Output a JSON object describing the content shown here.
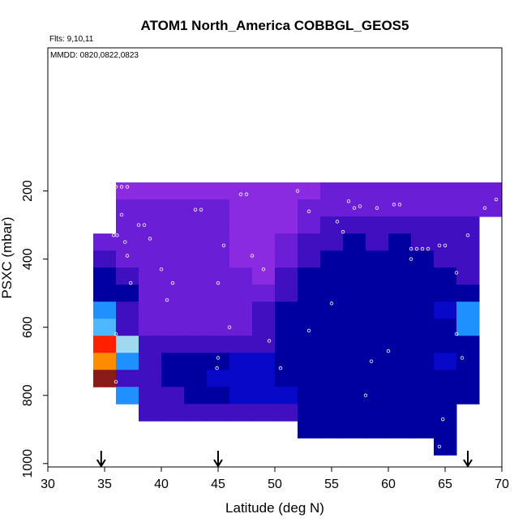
{
  "chart_data": {
    "type": "heatmap",
    "title": "ATOM1 North_America COBBGL_GEOS5",
    "annotations": [
      "Flts: 9,10,11",
      "MMDD: 0820,0822,0823"
    ],
    "xlabel": "Latitude (deg N)",
    "ylabel": "PSXC (mbar)",
    "xlim": [
      30,
      70
    ],
    "ylim": [
      1010,
      -220
    ],
    "xticks": [
      30,
      35,
      40,
      45,
      50,
      55,
      60,
      65,
      70
    ],
    "yticks": [
      200,
      400,
      600,
      800,
      1000
    ],
    "x_edges": [
      34,
      36,
      38,
      40,
      42,
      44,
      46,
      48,
      50,
      52,
      54,
      56,
      58,
      60,
      62,
      64,
      66,
      68,
      70
    ],
    "y_edges": [
      175,
      225,
      275,
      325,
      375,
      425,
      475,
      525,
      575,
      625,
      675,
      725,
      775,
      825,
      875,
      925,
      975
    ],
    "cells": [
      [
        null,
        "#8a2be2",
        "#8a2be2",
        "#8a2be2",
        "#8a2be2",
        "#8a2be2",
        "#8a2be2",
        "#8a2be2",
        "#8a2be2",
        "#8a2be2",
        "#6a1fd6",
        "#6a1fd6",
        "#6a1fd6",
        "#6a1fd6",
        "#6a1fd6",
        "#6a1fd6",
        "#6a1fd6",
        "#6a1fd6"
      ],
      [
        null,
        "#6a1fd6",
        "#6a1fd6",
        "#6a1fd6",
        "#6a1fd6",
        "#6a1fd6",
        "#8a2be2",
        "#8a2be2",
        "#8a2be2",
        "#6a1fd6",
        "#6a1fd6",
        "#6a1fd6",
        "#6a1fd6",
        "#6a1fd6",
        "#6a1fd6",
        "#6a1fd6",
        "#6a1fd6",
        "#6a1fd6"
      ],
      [
        null,
        "#6a1fd6",
        "#6a1fd6",
        "#6a1fd6",
        "#6a1fd6",
        "#6a1fd6",
        "#8a2be2",
        "#8a2be2",
        "#8a2be2",
        "#6a1fd6",
        "#4010c0",
        "#4010c0",
        "#4010c0",
        "#4010c0",
        "#4010c0",
        "#4010c0",
        "#4010c0",
        null
      ],
      [
        "#6a1fd6",
        "#6a1fd6",
        "#6a1fd6",
        "#6a1fd6",
        "#6a1fd6",
        "#6a1fd6",
        "#8a2be2",
        "#8a2be2",
        "#6a1fd6",
        "#4010c0",
        "#4010c0",
        "#0000a0",
        "#4010c0",
        "#0000a0",
        "#4010c0",
        "#4010c0",
        "#4010c0",
        null
      ],
      [
        "#4010c0",
        "#6a1fd6",
        "#6a1fd6",
        "#6a1fd6",
        "#6a1fd6",
        "#6a1fd6",
        "#8a2be2",
        "#8a2be2",
        "#6a1fd6",
        "#4010c0",
        "#0000a0",
        "#0000a0",
        "#0000a0",
        "#0000a0",
        "#0000a0",
        "#4010c0",
        "#4010c0",
        null
      ],
      [
        "#0000a0",
        "#4010c0",
        "#6a1fd6",
        "#6a1fd6",
        "#6a1fd6",
        "#6a1fd6",
        "#6a1fd6",
        "#8a2be2",
        "#4010c0",
        "#0000a0",
        "#0000a0",
        "#0000a0",
        "#0000a0",
        "#0000a0",
        "#0000a0",
        "#0000a0",
        "#4010c0",
        null
      ],
      [
        "#0000a0",
        "#0000a0",
        "#6a1fd6",
        "#6a1fd6",
        "#6a1fd6",
        "#6a1fd6",
        "#6a1fd6",
        "#6a1fd6",
        "#4010c0",
        "#0000a0",
        "#0000a0",
        "#0000a0",
        "#0000a0",
        "#0000a0",
        "#0000a0",
        "#0000a0",
        "#0000a0",
        null
      ],
      [
        "#1e90ff",
        "#4010c0",
        "#6a1fd6",
        "#6a1fd6",
        "#6a1fd6",
        "#6a1fd6",
        "#6a1fd6",
        "#4010c0",
        "#0000a0",
        "#0000a0",
        "#0000a0",
        "#0000a0",
        "#0000a0",
        "#0000a0",
        "#0000a0",
        "#0808c8",
        "#1e90ff",
        null
      ],
      [
        "#4db8ff",
        "#4010c0",
        "#6a1fd6",
        "#6a1fd6",
        "#6a1fd6",
        "#6a1fd6",
        "#6a1fd6",
        "#4010c0",
        "#0000a0",
        "#0000a0",
        "#0000a0",
        "#0000a0",
        "#0000a0",
        "#0000a0",
        "#0000a0",
        "#0000a0",
        "#1e90ff",
        null
      ],
      [
        "#ff2000",
        "#a0d8f0",
        "#4010c0",
        "#4010c0",
        "#4010c0",
        "#4010c0",
        "#4010c0",
        "#4010c0",
        "#0000a0",
        "#0000a0",
        "#0000a0",
        "#0000a0",
        "#0000a0",
        "#0000a0",
        "#0000a0",
        "#0000a0",
        "#0000a0",
        null
      ],
      [
        "#ff8c00",
        "#1e90ff",
        "#4010c0",
        "#0000a0",
        "#0000a0",
        "#0000a0",
        "#0808c8",
        "#0808c8",
        "#0000a0",
        "#0000a0",
        "#0000a0",
        "#0000a0",
        "#0000a0",
        "#0000a0",
        "#0000a0",
        "#0808c8",
        "#0000a0",
        null
      ],
      [
        "#8b1a1a",
        "#4010c0",
        "#4010c0",
        "#0000a0",
        "#0000a0",
        "#0808c8",
        "#0808c8",
        "#0808c8",
        "#0000a0",
        "#0000a0",
        "#0000a0",
        "#0000a0",
        "#0000a0",
        "#0000a0",
        "#0000a0",
        "#0000a0",
        "#0000a0",
        null
      ],
      [
        null,
        "#1e90ff",
        "#4010c0",
        "#4010c0",
        "#0000a0",
        "#0000a0",
        "#0808c8",
        "#0808c8",
        "#0808c8",
        "#0000a0",
        "#0000a0",
        "#0000a0",
        "#0000a0",
        "#0000a0",
        "#0000a0",
        "#0000a0",
        "#0000a0",
        null
      ],
      [
        null,
        null,
        "#4010c0",
        "#4010c0",
        "#4010c0",
        "#4010c0",
        "#4010c0",
        "#4010c0",
        "#4010c0",
        "#0000a0",
        "#0000a0",
        "#0000a0",
        "#0000a0",
        "#0000a0",
        "#0000a0",
        "#0000a0",
        null,
        null
      ],
      [
        null,
        null,
        null,
        null,
        null,
        null,
        null,
        null,
        null,
        "#0000a0",
        "#0000a0",
        "#0000a0",
        "#0000a0",
        "#0000a0",
        "#0000a0",
        "#0000a0",
        null,
        null
      ],
      [
        null,
        null,
        null,
        null,
        null,
        null,
        null,
        null,
        null,
        null,
        null,
        null,
        null,
        null,
        null,
        "#0000a0",
        null,
        null
      ]
    ],
    "points": {
      "color": "#ffffff",
      "x": [
        36,
        36.5,
        37,
        35.5,
        35.3,
        35.5,
        35.8,
        36.1,
        36.5,
        36.8,
        37,
        37.3,
        38,
        38.5,
        39,
        40,
        41,
        43,
        43.5,
        45,
        45.5,
        46,
        45,
        44.9,
        47,
        47.5,
        48,
        49,
        49.5,
        50.5,
        52,
        53,
        55.5,
        56,
        56.5,
        57,
        57.5,
        59,
        60.5,
        61,
        62,
        62.5,
        63,
        63.5,
        64.5,
        65,
        66,
        66,
        66.5,
        64,
        64.5,
        64.8,
        67,
        68.5,
        69.5,
        58.5,
        58,
        60,
        62,
        53,
        55,
        40.5,
        36,
        36,
        37
      ],
      "y": [
        188,
        188,
        188,
        240,
        258,
        300,
        330,
        330,
        270,
        350,
        390,
        470,
        300,
        300,
        340,
        430,
        470,
        255,
        255,
        470,
        360,
        600,
        690,
        720,
        210,
        210,
        390,
        430,
        640,
        720,
        200,
        260,
        290,
        320,
        230,
        250,
        245,
        250,
        240,
        240,
        370,
        370,
        370,
        370,
        360,
        360,
        440,
        620,
        690,
        1000,
        950,
        870,
        330,
        250,
        225,
        700,
        800,
        670,
        400,
        610,
        530,
        520,
        620,
        760,
        840
      ]
    },
    "arrows_x": [
      34.7,
      45,
      67
    ]
  }
}
